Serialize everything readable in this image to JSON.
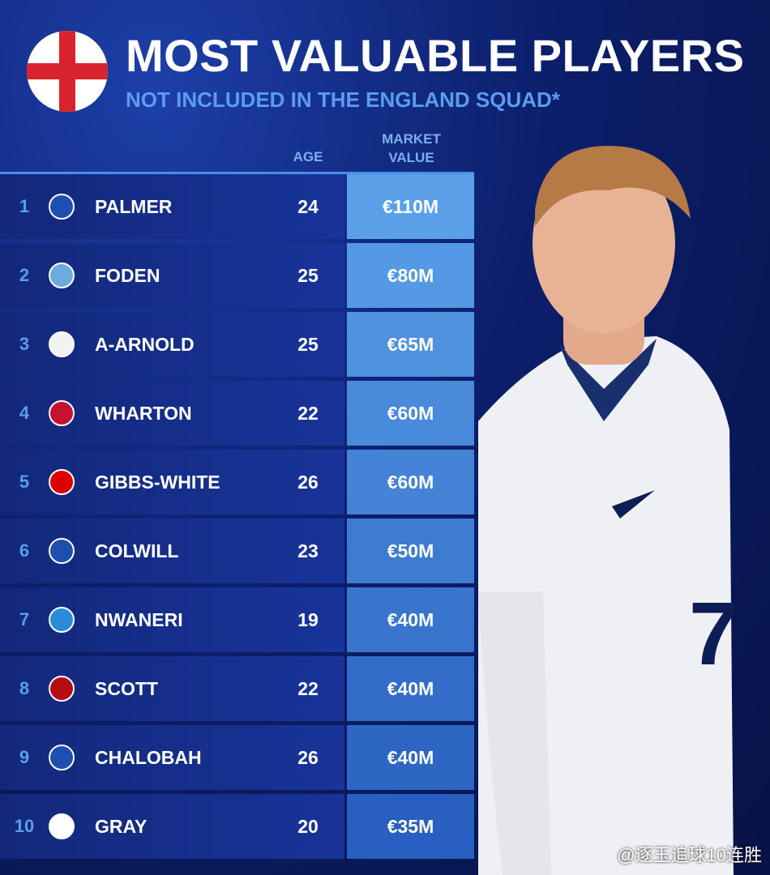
{
  "header": {
    "title": "MOST VALUABLE PLAYERS",
    "subtitle": "NOT INCLUDED IN THE ENGLAND SQUAD*"
  },
  "table": {
    "columns": [
      "AGE",
      "MARKET VALUE"
    ],
    "rows": [
      {
        "rank": 1,
        "name": "PALMER",
        "age": 24,
        "value": "€110M"
      },
      {
        "rank": 2,
        "name": "FODEN",
        "age": 25,
        "value": "€80M"
      },
      {
        "rank": 3,
        "name": "A-ARNOLD",
        "age": 25,
        "value": "€65M"
      },
      {
        "rank": 4,
        "name": "WHARTON",
        "age": 22,
        "value": "€60M"
      },
      {
        "rank": 5,
        "name": "GIBBS-WHITE",
        "age": 26,
        "value": "€60M"
      },
      {
        "rank": 6,
        "name": "COLWILL",
        "age": 23,
        "value": "€50M"
      },
      {
        "rank": 7,
        "name": "NWANERI",
        "age": 19,
        "value": "€40M"
      },
      {
        "rank": 8,
        "name": "SCOTT",
        "age": 22,
        "value": "€40M"
      },
      {
        "rank": 9,
        "name": "CHALOBAH",
        "age": 26,
        "value": "€40M"
      },
      {
        "rank": 10,
        "name": "GRAY",
        "age": 20,
        "value": "€35M"
      }
    ]
  },
  "watermark": "@逐玉追球10连胜"
}
